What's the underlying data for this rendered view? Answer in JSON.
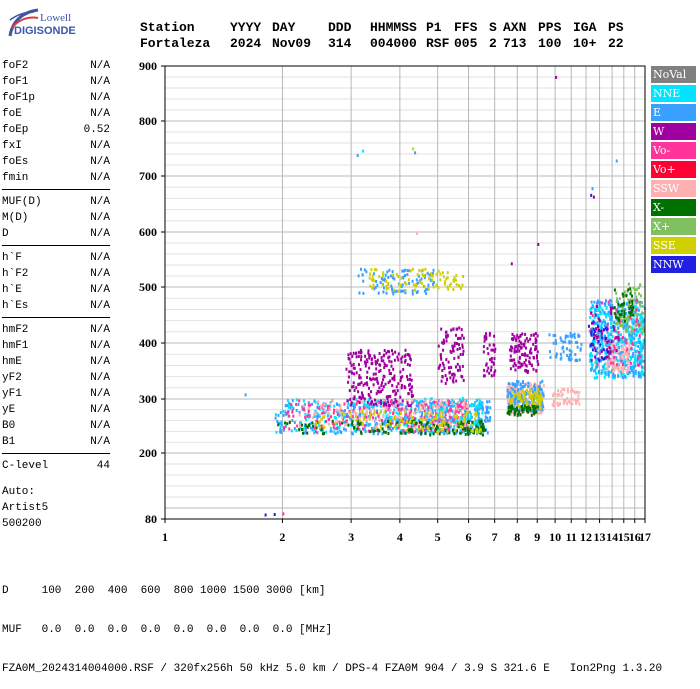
{
  "logo": {
    "line1": "Lowell",
    "line2": "DIGISONDE"
  },
  "header": {
    "labels": [
      "Station",
      "YYYY",
      "DAY",
      "DDD",
      "HHMMSS",
      "P1",
      "FFS",
      "S",
      "AXN",
      "PPS",
      "IGA",
      "PS"
    ],
    "values": [
      "Fortaleza",
      "2024",
      "Nov09",
      "314",
      "004000",
      "RSF",
      "005",
      "2",
      "713",
      "100",
      "10+",
      "22"
    ]
  },
  "params": [
    {
      "group": [
        {
          "label": "foF2",
          "value": "N/A"
        },
        {
          "label": "foF1",
          "value": "N/A"
        },
        {
          "label": "foF1p",
          "value": "N/A"
        },
        {
          "label": "foE",
          "value": "N/A"
        },
        {
          "label": "foEp",
          "value": "0.52"
        },
        {
          "label": "fxI",
          "value": "N/A"
        },
        {
          "label": "foEs",
          "value": "N/A"
        },
        {
          "label": "fmin",
          "value": "N/A"
        }
      ]
    },
    {
      "group": [
        {
          "label": "MUF(D)",
          "value": "N/A"
        },
        {
          "label": "M(D)",
          "value": "N/A"
        },
        {
          "label": "D",
          "value": "N/A"
        }
      ]
    },
    {
      "group": [
        {
          "label": "h`F",
          "value": "N/A"
        },
        {
          "label": "h`F2",
          "value": "N/A"
        },
        {
          "label": "h`E",
          "value": "N/A"
        },
        {
          "label": "h`Es",
          "value": "N/A"
        }
      ]
    },
    {
      "group": [
        {
          "label": "hmF2",
          "value": "N/A"
        },
        {
          "label": "hmF1",
          "value": "N/A"
        },
        {
          "label": "hmE",
          "value": "N/A"
        },
        {
          "label": "yF2",
          "value": "N/A"
        },
        {
          "label": "yF1",
          "value": "N/A"
        },
        {
          "label": "yE",
          "value": "N/A"
        },
        {
          "label": "B0",
          "value": "N/A"
        },
        {
          "label": "B1",
          "value": "N/A"
        }
      ]
    },
    {
      "group": [
        {
          "label": "C-level",
          "value": "44"
        }
      ]
    }
  ],
  "autoscaling": [
    "Auto:",
    "Artist5",
    "500200"
  ],
  "legend": [
    {
      "label": "NoVal",
      "color": "#808080"
    },
    {
      "label": "NNE",
      "color": "#00e5ff"
    },
    {
      "label": "E",
      "color": "#3aa0ff"
    },
    {
      "label": "W",
      "color": "#a000a0"
    },
    {
      "label": "Vo-",
      "color": "#ff3399"
    },
    {
      "label": "Vo+",
      "color": "#ff0033"
    },
    {
      "label": "SSW",
      "color": "#ffb0b0"
    },
    {
      "label": "X-",
      "color": "#007000"
    },
    {
      "label": "X+",
      "color": "#80c060"
    },
    {
      "label": "SSE",
      "color": "#d0d000"
    },
    {
      "label": "NNW",
      "color": "#2020e0"
    }
  ],
  "bottom": {
    "line1": "D     100  200  400  600  800 1000 1500 3000 [km]",
    "line2": "MUF   0.0  0.0  0.0  0.0  0.0  0.0  0.0  0.0 [MHz]",
    "line3": "FZA0M_2024314004000.RSF / 320fx256h 50 kHz 5.0 km / DPS-4 FZA0M 904 / 3.9 S 321.6 E   Ion2Png 1.3.20"
  },
  "chart_data": {
    "type": "scatter",
    "title": "",
    "xlabel": "",
    "ylabel": "",
    "x_axis": {
      "min": 1,
      "max": 17,
      "ticks": [
        1,
        2,
        3,
        4,
        5,
        6,
        7,
        8,
        9,
        10,
        11,
        12,
        13,
        14,
        15,
        16,
        17
      ],
      "scale": "log"
    },
    "y_axis": {
      "min": 80,
      "max": 900,
      "ticks": [
        80,
        200,
        300,
        400,
        500,
        600,
        700,
        800,
        900
      ]
    },
    "grid": true,
    "clusters": [
      {
        "color": "#3aa0ff",
        "x": [
          1.9,
          6.8
        ],
        "y": [
          238,
          300
        ],
        "n": 520
      },
      {
        "color": "#00e5ff",
        "x": [
          1.9,
          6.5
        ],
        "y": [
          240,
          305
        ],
        "n": 260
      },
      {
        "color": "#ff3399",
        "x": [
          2.0,
          6.0
        ],
        "y": [
          242,
          300
        ],
        "n": 220
      },
      {
        "color": "#ffb0b0",
        "x": [
          2.2,
          6.0
        ],
        "y": [
          250,
          300
        ],
        "n": 160
      },
      {
        "color": "#007000",
        "x": [
          1.9,
          6.6
        ],
        "y": [
          236,
          262
        ],
        "n": 140
      },
      {
        "color": "#d0d000",
        "x": [
          2.4,
          6.4
        ],
        "y": [
          240,
          280
        ],
        "n": 110
      },
      {
        "color": "#a000a0",
        "x": [
          2.9,
          4.3
        ],
        "y": [
          290,
          390
        ],
        "n": 240
      },
      {
        "color": "#a000a0",
        "x": [
          5.0,
          5.8
        ],
        "y": [
          330,
          430
        ],
        "n": 90
      },
      {
        "color": "#a000a0",
        "x": [
          6.5,
          7.0
        ],
        "y": [
          340,
          420
        ],
        "n": 40
      },
      {
        "color": "#a000a0",
        "x": [
          7.6,
          9.0
        ],
        "y": [
          350,
          420
        ],
        "n": 110
      },
      {
        "color": "#ffb0b0",
        "x": [
          7.5,
          9.3
        ],
        "y": [
          275,
          330
        ],
        "n": 200
      },
      {
        "color": "#3aa0ff",
        "x": [
          7.5,
          9.3
        ],
        "y": [
          280,
          335
        ],
        "n": 150
      },
      {
        "color": "#d0d000",
        "x": [
          7.6,
          9.2
        ],
        "y": [
          285,
          320
        ],
        "n": 90
      },
      {
        "color": "#007000",
        "x": [
          7.5,
          9.0
        ],
        "y": [
          272,
          290
        ],
        "n": 60
      },
      {
        "color": "#3aa0ff",
        "x": [
          3.1,
          4.9
        ],
        "y": [
          490,
          535
        ],
        "n": 90
      },
      {
        "color": "#d0d000",
        "x": [
          3.3,
          5.8
        ],
        "y": [
          495,
          535
        ],
        "n": 90
      },
      {
        "color": "#3aa0ff",
        "x": [
          9.6,
          11.7
        ],
        "y": [
          370,
          420
        ],
        "n": 60
      },
      {
        "color": "#ffb0b0",
        "x": [
          9.8,
          11.5
        ],
        "y": [
          290,
          320
        ],
        "n": 50
      },
      {
        "color": "#00e5ff",
        "x": [
          12.2,
          16.8
        ],
        "y": [
          340,
          470
        ],
        "n": 380
      },
      {
        "color": "#3aa0ff",
        "x": [
          12.2,
          16.8
        ],
        "y": [
          340,
          480
        ],
        "n": 230
      },
      {
        "color": "#ffb0b0",
        "x": [
          13.5,
          15.5
        ],
        "y": [
          350,
          400
        ],
        "n": 90
      },
      {
        "color": "#80c060",
        "x": [
          14.2,
          16.9
        ],
        "y": [
          420,
          510
        ],
        "n": 90
      },
      {
        "color": "#ff3399",
        "x": [
          12.2,
          16.5
        ],
        "y": [
          360,
          480
        ],
        "n": 60
      },
      {
        "color": "#007000",
        "x": [
          14.0,
          15.8
        ],
        "y": [
          440,
          500
        ],
        "n": 40
      },
      {
        "color": "#a000a0",
        "x": [
          12.3,
          14.5
        ],
        "y": [
          370,
          470
        ],
        "n": 40
      },
      {
        "color": "#2020e0",
        "x": [
          12.0,
          13.6
        ],
        "y": [
          370,
          440
        ],
        "n": 30
      }
    ],
    "points": [
      {
        "x": 1.8,
        "y": 90,
        "color": "#2020e0"
      },
      {
        "x": 1.9,
        "y": 91,
        "color": "#2020e0"
      },
      {
        "x": 2.0,
        "y": 92,
        "color": "#ff3399"
      },
      {
        "x": 3.1,
        "y": 740,
        "color": "#3aa0ff"
      },
      {
        "x": 3.2,
        "y": 748,
        "color": "#00e5ff"
      },
      {
        "x": 4.3,
        "y": 752,
        "color": "#d0d000"
      },
      {
        "x": 4.35,
        "y": 745,
        "color": "#3aa0ff"
      },
      {
        "x": 10.0,
        "y": 882,
        "color": "#a000a0"
      },
      {
        "x": 12.3,
        "y": 668,
        "color": "#2020e0"
      },
      {
        "x": 12.5,
        "y": 665,
        "color": "#a000a0"
      },
      {
        "x": 12.4,
        "y": 680,
        "color": "#3aa0ff"
      },
      {
        "x": 14.3,
        "y": 730,
        "color": "#3aa0ff"
      },
      {
        "x": 9.0,
        "y": 580,
        "color": "#a000a0"
      },
      {
        "x": 7.7,
        "y": 545,
        "color": "#a000a0"
      },
      {
        "x": 4.4,
        "y": 600,
        "color": "#ffb0b0"
      },
      {
        "x": 1.6,
        "y": 310,
        "color": "#3aa0ff"
      }
    ]
  }
}
